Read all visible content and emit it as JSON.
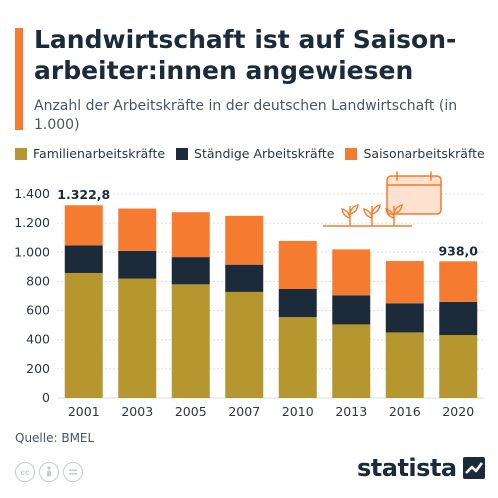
{
  "header": {
    "title": "Landwirtschaft ist auf Saison-arbeiter:innen angewiesen",
    "subtitle": "Anzahl der Arbeitskräfte in der deutschen Landwirtschaft (in 1.000)"
  },
  "footer": {
    "source": "Quelle: BMEL",
    "brand": "statista"
  },
  "colors": {
    "familien": "#b5962f",
    "staendige": "#1c2b3a",
    "saison": "#f47b30",
    "accent": "#f47b30"
  },
  "chart_data": {
    "type": "bar",
    "stacked": true,
    "categories": [
      "2001",
      "2003",
      "2005",
      "2007",
      "2010",
      "2013",
      "2016",
      "2020"
    ],
    "series": [
      {
        "name": "Familienarbeitskräfte",
        "values": [
          858,
          820,
          780,
          728,
          555,
          505,
          450,
          432
        ]
      },
      {
        "name": "Ständige Arbeitskräfte",
        "values": [
          190,
          190,
          187,
          187,
          193,
          200,
          200,
          228
        ]
      },
      {
        "name": "Saisonarbeitskräfte",
        "values": [
          274.8,
          290,
          308,
          335,
          330,
          315,
          290,
          278
        ]
      }
    ],
    "data_labels": [
      {
        "category": "2001",
        "text": "1.322,8"
      },
      {
        "category": "2020",
        "text": "938,0"
      }
    ],
    "ylim": [
      0,
      1400
    ],
    "yticks": [
      0,
      200,
      400,
      600,
      800,
      1000,
      1200,
      1400
    ],
    "ytick_labels": [
      "0",
      "200",
      "400",
      "600",
      "800",
      "1.000",
      "1.200",
      "1.400"
    ],
    "grid": true,
    "legend_position": "top"
  }
}
